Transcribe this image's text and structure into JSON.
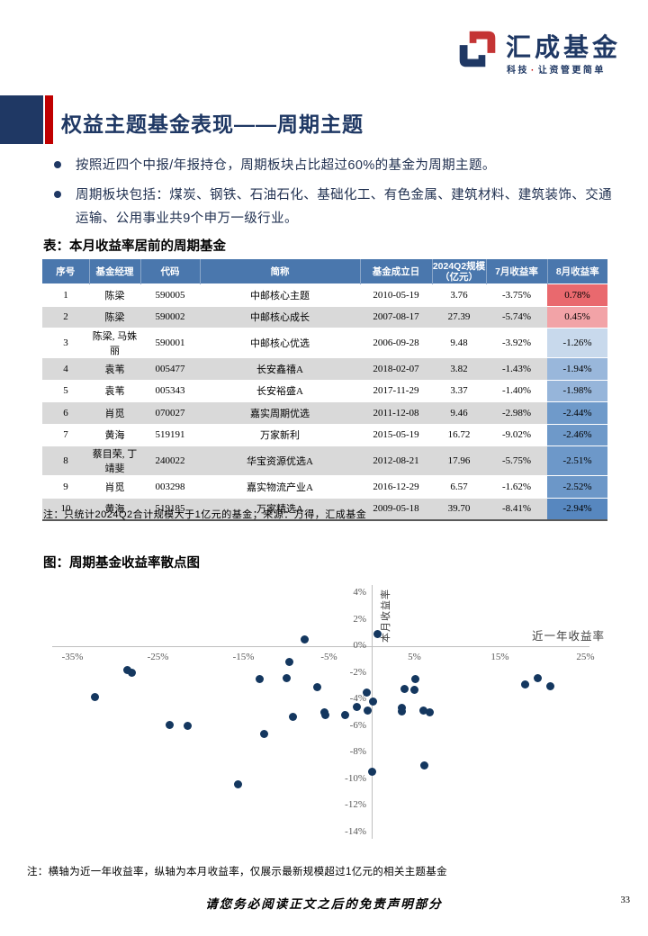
{
  "colors": {
    "navy": "#1f3864",
    "red": "#c00000",
    "table_header_blue": "#4a77ad",
    "row_alt_gray": "#d9d9d9",
    "scatter_dot_navy": "#14375f"
  },
  "brand": {
    "name": "汇成基金",
    "tagline_pre": "科技",
    "tagline_dot": "·",
    "tagline_post": "让资管更简单"
  },
  "title": "权益主题基金表现——周期主题",
  "bullets": [
    "按照近四个中报/年报持仓，周期板块占比超过60%的基金为周期主题。",
    "周期板块包括：煤炭、钢铁、石油石化、基础化工、有色金属、建筑材料、建筑装饰、交通运输、公用事业共9个申万一级行业。"
  ],
  "table": {
    "title": "表：本月收益率居前的周期基金",
    "headers": [
      [
        "序号"
      ],
      [
        "基金经理"
      ],
      [
        "代码"
      ],
      [
        "简称"
      ],
      [
        "基金成立日"
      ],
      [
        "2024Q2规模",
        "（亿元）"
      ],
      [
        "7月收益率"
      ],
      [
        "8月收益率"
      ]
    ],
    "rows": [
      {
        "seq": "1",
        "manager": "陈梁",
        "code": "590005",
        "name": "中邮核心主题",
        "inception": "2010-05-19",
        "size": "3.76",
        "july": "-3.75%",
        "august": "0.78%",
        "august_bg": "#e9696e"
      },
      {
        "seq": "2",
        "manager": "陈梁",
        "code": "590002",
        "name": "中邮核心成长",
        "inception": "2007-08-17",
        "size": "27.39",
        "july": "-5.74%",
        "august": "0.45%",
        "august_bg": "#f2a3a7"
      },
      {
        "seq": "3",
        "manager": "陈梁, 马姝丽",
        "code": "590001",
        "name": "中邮核心优选",
        "inception": "2006-09-28",
        "size": "9.48",
        "july": "-3.92%",
        "august": "-1.26%",
        "august_bg": "#c8d9ec"
      },
      {
        "seq": "4",
        "manager": "袁苇",
        "code": "005477",
        "name": "长安鑫禧A",
        "inception": "2018-02-07",
        "size": "3.82",
        "july": "-1.43%",
        "august": "-1.94%",
        "august_bg": "#99b7db"
      },
      {
        "seq": "5",
        "manager": "袁苇",
        "code": "005343",
        "name": "长安裕盛A",
        "inception": "2017-11-29",
        "size": "3.37",
        "july": "-1.40%",
        "august": "-1.98%",
        "august_bg": "#96b5da"
      },
      {
        "seq": "6",
        "manager": "肖觅",
        "code": "070027",
        "name": "嘉实周期优选",
        "inception": "2011-12-08",
        "size": "9.46",
        "july": "-2.98%",
        "august": "-2.44%",
        "august_bg": "#6f9aca"
      },
      {
        "seq": "7",
        "manager": "黄海",
        "code": "519191",
        "name": "万家新利",
        "inception": "2015-05-19",
        "size": "16.72",
        "july": "-9.02%",
        "august": "-2.46%",
        "august_bg": "#6e99c9"
      },
      {
        "seq": "8",
        "manager": "蔡目荣, 丁靖斐",
        "code": "240022",
        "name": "华宝资源优选A",
        "inception": "2012-08-21",
        "size": "17.96",
        "july": "-5.75%",
        "august": "-2.51%",
        "august_bg": "#6d98c9"
      },
      {
        "seq": "9",
        "manager": "肖觅",
        "code": "003298",
        "name": "嘉实物流产业A",
        "inception": "2016-12-29",
        "size": "6.57",
        "july": "-1.62%",
        "august": "-2.52%",
        "august_bg": "#6c97c8"
      },
      {
        "seq": "10",
        "manager": "黄海",
        "code": "519185",
        "name": "万家精选A",
        "inception": "2009-05-18",
        "size": "39.70",
        "july": "-8.41%",
        "august": "-2.94%",
        "august_bg": "#5787bf"
      }
    ],
    "note": "注：只统计2024Q2合计规模大于1亿元的基金；来源：万得，汇成基金"
  },
  "chart_data": {
    "type": "scatter",
    "title": "图：周期基金收益率散点图",
    "xlabel": "近一年收益率",
    "ylabel": "本月收益率",
    "x_ticks": [
      -35,
      -25,
      -15,
      -5,
      5,
      15,
      25
    ],
    "y_ticks": [
      4,
      2,
      0,
      -2,
      -4,
      -6,
      -8,
      -10,
      -12,
      -14
    ],
    "xlim": [
      -37.4,
      26.0
    ],
    "ylim": [
      -14.5,
      4.6
    ],
    "grid": false,
    "legend": "none",
    "dot_color": "#14375f",
    "points": [
      [
        0.7,
        0.9
      ],
      [
        -7.8,
        0.5
      ],
      [
        -9.6,
        -1.2
      ],
      [
        -28.6,
        -1.8
      ],
      [
        -28.1,
        -2.0
      ],
      [
        -10.0,
        -2.4
      ],
      [
        -13.1,
        -2.45
      ],
      [
        19.4,
        -2.4
      ],
      [
        5.1,
        -2.5
      ],
      [
        17.9,
        -2.9
      ],
      [
        20.9,
        -3.0
      ],
      [
        -6.4,
        -3.1
      ],
      [
        3.8,
        -3.2
      ],
      [
        5.0,
        -3.3
      ],
      [
        -0.6,
        -3.5
      ],
      [
        -32.4,
        -3.8
      ],
      [
        0.2,
        -4.15
      ],
      [
        -1.7,
        -4.55
      ],
      [
        3.5,
        -4.65
      ],
      [
        -0.5,
        -4.85
      ],
      [
        6.1,
        -4.85
      ],
      [
        3.5,
        -4.9
      ],
      [
        6.8,
        -4.95
      ],
      [
        -5.5,
        -4.95
      ],
      [
        -3.1,
        -5.2
      ],
      [
        -5.4,
        -5.2
      ],
      [
        -9.2,
        -5.3
      ],
      [
        -23.6,
        -5.9
      ],
      [
        -21.5,
        -6.0
      ],
      [
        -12.6,
        -6.6
      ],
      [
        6.2,
        -9.0
      ],
      [
        0.1,
        -9.45
      ],
      [
        -15.6,
        -10.4
      ]
    ],
    "note": "注：横轴为近一年收益率，纵轴为本月收益率，仅展示最新规模超过1亿元的相关主题基金"
  },
  "footer": {
    "disclaimer": "请您务必阅读正文之后的免责声明部分",
    "page_number": "33"
  }
}
